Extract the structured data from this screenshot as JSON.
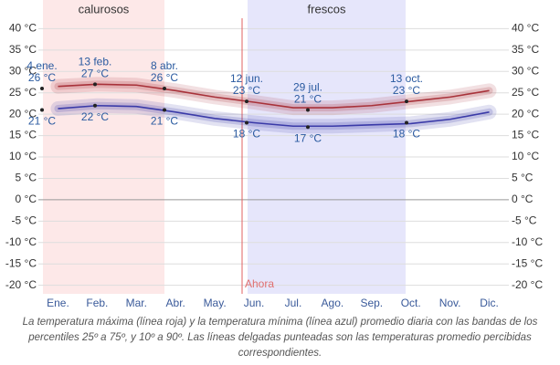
{
  "chart_data": {
    "type": "line",
    "categories": [
      "Ene.",
      "Feb.",
      "Mar.",
      "Abr.",
      "May.",
      "Jun.",
      "Jul.",
      "Ago.",
      "Sep.",
      "Oct.",
      "Nov.",
      "Dic."
    ],
    "series": [
      {
        "color": "#a8323a",
        "values": [
          26.5,
          27,
          26.8,
          25.5,
          24,
          22.8,
          21.5,
          21.5,
          22,
          23,
          24,
          25.5
        ]
      },
      {
        "color": "#3a3aa8",
        "values": [
          21.3,
          22,
          21.8,
          20.5,
          19,
          18,
          17.2,
          17.2,
          17.5,
          17.8,
          18.8,
          20.5
        ]
      }
    ],
    "ylim": [
      -22,
      42
    ],
    "yticks": [
      {
        "value": 40,
        "label": "40 °C"
      },
      {
        "value": 35,
        "label": "35 °C"
      },
      {
        "value": 30,
        "label": "30 °C"
      },
      {
        "value": 25,
        "label": "25 °C"
      },
      {
        "value": 20,
        "label": "20 °C"
      },
      {
        "value": 15,
        "label": "15 °C"
      },
      {
        "value": 10,
        "label": "10 °C"
      },
      {
        "value": 5,
        "label": "5 °C"
      },
      {
        "value": 0,
        "label": "0 °C"
      },
      {
        "value": -5,
        "label": "-5 °C"
      },
      {
        "value": -10,
        "label": "-10 °C"
      },
      {
        "value": -15,
        "label": "-15 °C"
      },
      {
        "value": -20,
        "label": "-20 °C"
      }
    ],
    "grid": true,
    "annotations": [
      {
        "date": "4 ene.",
        "high": 26,
        "high_label": "26 °C",
        "low": 21,
        "low_label": "21 °C"
      },
      {
        "date": "13 feb.",
        "high": 27,
        "high_label": "27 °C",
        "low": 22,
        "low_label": "22 °C"
      },
      {
        "date": "8 abr.",
        "high": 26,
        "high_label": "26 °C",
        "low": 21,
        "low_label": "21 °C"
      },
      {
        "date": "12 jun.",
        "high": 23,
        "high_label": "23 °C",
        "low": 18,
        "low_label": "18 °C"
      },
      {
        "date": "29 jul.",
        "high": 21,
        "high_label": "21 °C",
        "low": 17,
        "low_label": "17 °C"
      },
      {
        "date": "13 oct.",
        "high": 23,
        "high_label": "23 °C",
        "low": 18,
        "low_label": "18 °C"
      }
    ],
    "seasons": [
      "calurosos",
      "frescos"
    ],
    "now_label": "Ahora",
    "caption": "La temperatura máxima (línea roja) y la temperatura mínima (línea azul) promedio diaria con las bandas de los percentiles 25º a 75º, y 10º a 90º. Las líneas delgadas punteadas son las temperaturas promedio percibidas correspondientes."
  }
}
